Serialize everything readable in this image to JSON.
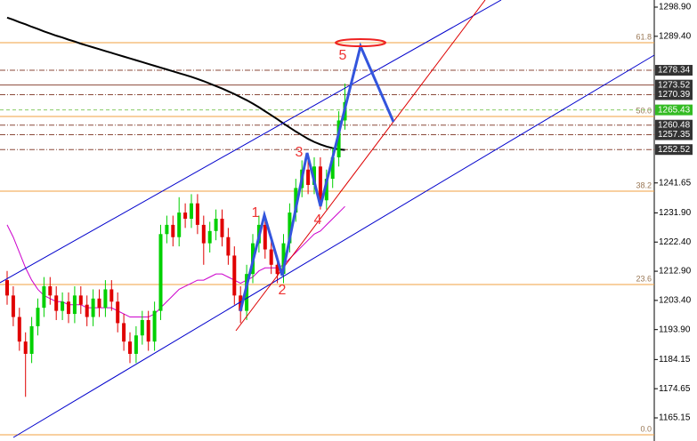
{
  "chart_data": {
    "type": "candlestick",
    "up_color": "#00d000",
    "down_color": "#e00000",
    "ylim": [
      1157.62,
      1301.22
    ],
    "yticks": [
      {
        "value": 1298.9,
        "label": "1298.90"
      },
      {
        "value": 1289.4,
        "label": "1289.40"
      },
      {
        "value": 1241.65,
        "label": "1241.65"
      },
      {
        "value": 1231.9,
        "label": "1231.90"
      },
      {
        "value": 1222.4,
        "label": "1222.40"
      },
      {
        "value": 1212.9,
        "label": "1212.90"
      },
      {
        "value": 1203.4,
        "label": "1203.40"
      },
      {
        "value": 1193.9,
        "label": "1193.90"
      },
      {
        "value": 1184.15,
        "label": "1184.15"
      },
      {
        "value": 1174.65,
        "label": "1174.65"
      },
      {
        "value": 1165.15,
        "label": "1165.15"
      }
    ],
    "open": [
      1210,
      1205,
      1198,
      1190,
      1186,
      1195,
      1201,
      1208,
      1205,
      1200,
      1203,
      1199,
      1205,
      1202,
      1198,
      1204,
      1201,
      1207,
      1203,
      1196,
      1190,
      1186,
      1192,
      1197,
      1190,
      1200,
      1225,
      1228,
      1224,
      1232,
      1230,
      1235,
      1228,
      1222,
      1226,
      1230,
      1224,
      1218,
      1205,
      1200,
      1212,
      1222,
      1228,
      1220,
      1215,
      1212,
      1222,
      1232,
      1240,
      1246,
      1241,
      1247,
      1236,
      1243,
      1250,
      1262
    ],
    "high": [
      1213,
      1208,
      1201,
      1193,
      1198,
      1204,
      1211,
      1211,
      1208,
      1206,
      1206,
      1208,
      1208,
      1205,
      1207,
      1207,
      1210,
      1210,
      1206,
      1199,
      1193,
      1195,
      1200,
      1200,
      1203,
      1228,
      1231,
      1231,
      1237,
      1235,
      1238,
      1238,
      1231,
      1229,
      1233,
      1233,
      1227,
      1221,
      1208,
      1215,
      1225,
      1231,
      1231,
      1223,
      1218,
      1225,
      1235,
      1243,
      1249,
      1249,
      1250,
      1250,
      1246,
      1253,
      1265,
      1274
    ],
    "low": [
      1202,
      1195,
      1187,
      1172,
      1183,
      1192,
      1198,
      1202,
      1197,
      1197,
      1196,
      1196,
      1199,
      1195,
      1195,
      1198,
      1198,
      1200,
      1193,
      1187,
      1183,
      1183,
      1189,
      1187,
      1187,
      1197,
      1222,
      1221,
      1221,
      1227,
      1227,
      1225,
      1215,
      1219,
      1223,
      1221,
      1215,
      1202,
      1196,
      1197,
      1209,
      1219,
      1217,
      1212,
      1209,
      1209,
      1219,
      1229,
      1237,
      1238,
      1238,
      1233,
      1233,
      1240,
      1247,
      1259
    ],
    "close": [
      1205,
      1198,
      1190,
      1186,
      1195,
      1201,
      1208,
      1205,
      1200,
      1203,
      1199,
      1205,
      1202,
      1198,
      1204,
      1201,
      1207,
      1203,
      1196,
      1190,
      1186,
      1192,
      1197,
      1190,
      1200,
      1225,
      1228,
      1224,
      1232,
      1230,
      1235,
      1228,
      1222,
      1226,
      1230,
      1224,
      1218,
      1205,
      1200,
      1212,
      1222,
      1228,
      1220,
      1215,
      1212,
      1222,
      1232,
      1240,
      1246,
      1241,
      1247,
      1236,
      1243,
      1250,
      1262,
      1268
    ],
    "overlays": [
      {
        "color": "#000000",
        "values": [
          1295.5,
          1294.8,
          1294,
          1293.3,
          1292.5,
          1291.8,
          1291,
          1290.3,
          1289.6,
          1289,
          1288.3,
          1287.7,
          1287,
          1286.4,
          1285.8,
          1285.2,
          1284.6,
          1284,
          1283.4,
          1282.8,
          1282.2,
          1281.6,
          1281,
          1280.4,
          1279.8,
          1279.2,
          1278.6,
          1278,
          1277.4,
          1276.8,
          1276.2,
          1275.5,
          1274.8,
          1274,
          1273.2,
          1272.4,
          1271.5,
          1270.6,
          1269.6,
          1268.6,
          1267.5,
          1266.3,
          1265,
          1263.7,
          1262.4,
          1261,
          1259.7,
          1258.4,
          1257.2,
          1256,
          1255,
          1254.2,
          1253.5,
          1253,
          1252.6,
          1252.4
        ]
      },
      {
        "color": "#cc00cc",
        "values": [
          1228,
          1224,
          1219,
          1214,
          1210,
          1207,
          1205,
          1204,
          1203,
          1203,
          1202,
          1202,
          1202,
          1201,
          1201,
          1201,
          1201,
          1201,
          1200,
          1199,
          1198,
          1198,
          1198,
          1198,
          1199,
          1201,
          1203,
          1205,
          1207,
          1208,
          1209,
          1210,
          1210,
          1211,
          1212,
          1212,
          1211,
          1210,
          1209,
          1210,
          1211,
          1213,
          1214,
          1214,
          1214,
          1215,
          1217,
          1219,
          1221,
          1223,
          1225,
          1226,
          1228,
          1230,
          1232,
          1234
        ]
      }
    ],
    "fib_levels": [
      {
        "label": "61.8",
        "value": 1287.32
      },
      {
        "label": "50.0",
        "value": 1263.29
      },
      {
        "label": "38.2",
        "value": 1238.97
      },
      {
        "label": "23.6",
        "value": 1208.57
      },
      {
        "label": "0.0",
        "value": 1159.64
      }
    ],
    "price_tags": [
      {
        "value": 1278.34,
        "color": "#333333"
      },
      {
        "value": 1273.52,
        "color": "#333333"
      },
      {
        "value": 1270.39,
        "color": "#333333"
      },
      {
        "value": 1265.43,
        "color": "#33bb22"
      },
      {
        "value": 1260.48,
        "color": "#333333"
      },
      {
        "value": 1257.35,
        "color": "#333333"
      },
      {
        "value": 1252.52,
        "color": "#333333"
      }
    ],
    "wave_labels": [
      "1",
      "2",
      "3",
      "4",
      "5"
    ]
  }
}
